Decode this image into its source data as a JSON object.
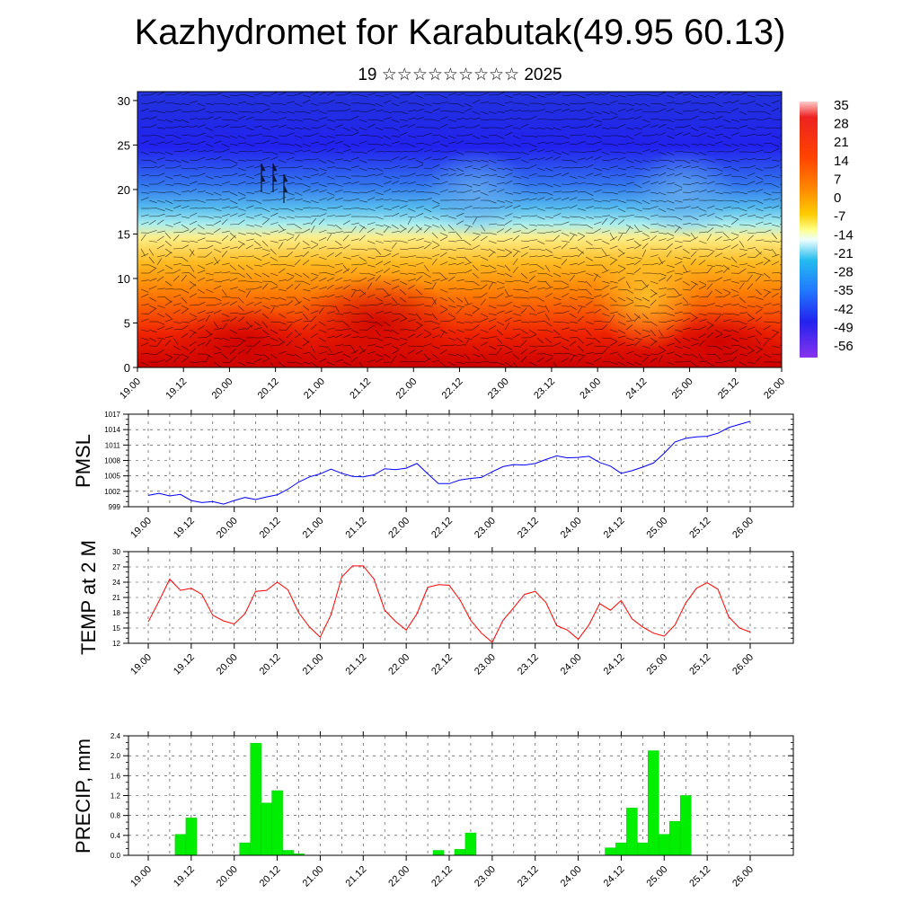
{
  "title": "Kazhydromet for Karabutak(49.95 60.13)",
  "subtitle": "19 ☆☆☆☆☆☆☆☆☆ 2025",
  "time_labels": [
    "19.00",
    "19.12",
    "20.00",
    "20.12",
    "21.00",
    "21.12",
    "22.00",
    "22.12",
    "23.00",
    "23.12",
    "24.00",
    "24.12",
    "25.00",
    "25.12",
    "26.00"
  ],
  "colorbar_labels": [
    "35",
    "28",
    "21",
    "14",
    "7",
    "0",
    "-7",
    "-14",
    "-21",
    "-28",
    "-35",
    "-42",
    "-49",
    "-56"
  ],
  "chart_data": [
    {
      "type": "heatmap",
      "description_key": "cross-section",
      "x": [
        "19.00",
        "19.12",
        "20.00",
        "20.12",
        "21.00",
        "21.12",
        "22.00",
        "22.12",
        "23.00",
        "23.12",
        "24.00",
        "24.12",
        "25.00",
        "25.12",
        "26.00"
      ],
      "y_ticks": [
        0,
        5,
        10,
        15,
        20,
        25,
        30
      ],
      "ylim": [
        0,
        31
      ],
      "colorbar": [
        35,
        28,
        21,
        14,
        7,
        0,
        -7,
        -14,
        -21,
        -28,
        -35,
        -42,
        -49,
        -56
      ]
    },
    {
      "type": "line",
      "ylabel": "PMSL",
      "ylim": [
        999,
        1017
      ],
      "y_ticks": [
        999,
        1002,
        1005,
        1008,
        1011,
        1014,
        1017
      ],
      "color": "#0000ff",
      "x_step_hours": 3,
      "values": [
        1001.2,
        1001.6,
        1001.1,
        1001.4,
        1000.2,
        999.8,
        1000.0,
        999.5,
        1000.2,
        1000.8,
        1000.4,
        1000.9,
        1001.3,
        1002.4,
        1003.8,
        1004.8,
        1005.4,
        1006.3,
        1005.5,
        1004.9,
        1004.8,
        1005.2,
        1006.4,
        1006.2,
        1006.5,
        1007.4,
        1005.4,
        1003.5,
        1003.5,
        1004.2,
        1004.5,
        1004.7,
        1005.8,
        1006.8,
        1007.2,
        1007.1,
        1007.4,
        1008.2,
        1008.9,
        1008.5,
        1008.6,
        1008.8,
        1007.6,
        1006.9,
        1005.5,
        1006.0,
        1006.7,
        1007.5,
        1009.4,
        1011.6,
        1012.3,
        1012.6,
        1012.7,
        1013.3,
        1014.4,
        1015.0,
        1015.6
      ]
    },
    {
      "type": "line",
      "ylabel": "TEMP at 2 M",
      "ylim": [
        12,
        30
      ],
      "y_ticks": [
        12,
        15,
        18,
        21,
        24,
        27,
        30
      ],
      "color": "#ff0000",
      "x_step_hours": 3,
      "values": [
        16.2,
        20.3,
        24.6,
        22.4,
        22.8,
        21.6,
        17.5,
        16.4,
        15.8,
        17.8,
        22.2,
        22.4,
        24.0,
        22.5,
        18.0,
        15.2,
        13.2,
        17.6,
        25.0,
        27.2,
        27.2,
        24.6,
        18.5,
        16.3,
        14.6,
        17.8,
        23.0,
        23.5,
        23.4,
        20.5,
        16.5,
        14.0,
        12.2,
        16.5,
        19.0,
        21.6,
        22.2,
        20.0,
        15.5,
        14.6,
        12.8,
        15.6,
        19.8,
        18.5,
        20.4,
        16.8,
        15.2,
        14.0,
        13.4,
        15.6,
        19.9,
        22.8,
        23.9,
        22.6,
        17.2,
        15.0,
        14.2
      ]
    },
    {
      "type": "bar",
      "ylabel": "PRECIP, mm",
      "ylim": [
        0,
        2.4
      ],
      "y_ticks": [
        "0.0",
        "0.4",
        "0.8",
        "1.2",
        "1.6",
        "2.0",
        "2.4"
      ],
      "color": "#00ee00",
      "x_step_hours": 3,
      "values": [
        0,
        0,
        0,
        0.42,
        0.75,
        0,
        0,
        0,
        0,
        0.25,
        2.25,
        1.05,
        1.3,
        0.1,
        0.03,
        0,
        0,
        0,
        0,
        0,
        0,
        0,
        0,
        0,
        0,
        0,
        0,
        0.1,
        0,
        0.12,
        0.45,
        0,
        0,
        0,
        0,
        0,
        0,
        0,
        0,
        0,
        0,
        0,
        0,
        0.15,
        0.25,
        0.95,
        0.25,
        2.1,
        0.42,
        0.68,
        1.2,
        0,
        0,
        0,
        0,
        0,
        0
      ]
    }
  ]
}
